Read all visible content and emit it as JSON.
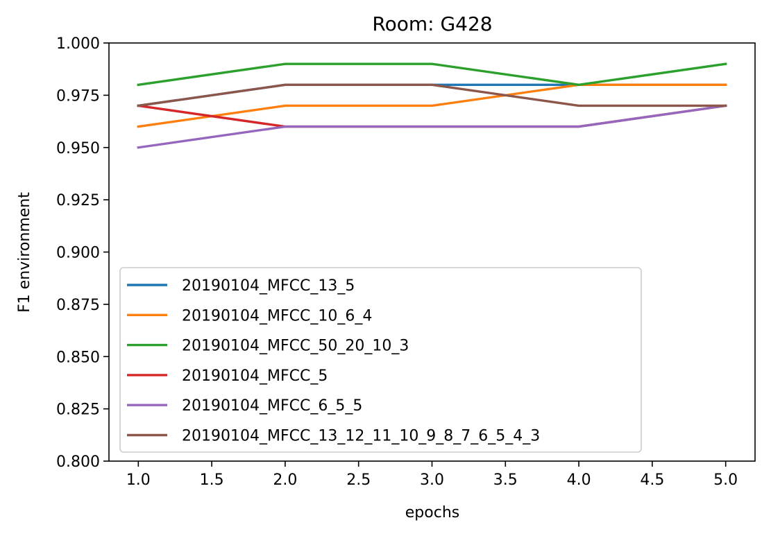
{
  "chart_data": {
    "type": "line",
    "title": "Room: G428",
    "xlabel": "epochs",
    "ylabel": "F1 environment",
    "xlim": [
      0.8,
      5.2
    ],
    "ylim": [
      0.8,
      1.0
    ],
    "xticks": [
      "1.0",
      "1.5",
      "2.0",
      "2.5",
      "3.0",
      "3.5",
      "4.0",
      "4.5",
      "5.0"
    ],
    "yticks": [
      "0.800",
      "0.825",
      "0.850",
      "0.875",
      "0.900",
      "0.925",
      "0.950",
      "0.975",
      "1.000"
    ],
    "grid": false,
    "legend_position": "lower-left",
    "x": [
      1,
      2,
      3,
      4,
      5
    ],
    "series": [
      {
        "name": "20190104_MFCC_13_5",
        "color": "#1f77b4",
        "values": [
          0.97,
          0.98,
          0.98,
          0.98,
          0.98
        ]
      },
      {
        "name": "20190104_MFCC_10_6_4",
        "color": "#ff7f0e",
        "values": [
          0.96,
          0.97,
          0.97,
          0.98,
          0.98
        ]
      },
      {
        "name": "20190104_MFCC_50_20_10_3",
        "color": "#2ca02c",
        "values": [
          0.98,
          0.99,
          0.99,
          0.98,
          0.99
        ]
      },
      {
        "name": "20190104_MFCC_5",
        "color": "#d62728",
        "values": [
          0.97,
          0.96,
          0.96,
          0.96,
          0.97
        ]
      },
      {
        "name": "20190104_MFCC_6_5_5",
        "color": "#9467bd",
        "values": [
          0.95,
          0.96,
          0.96,
          0.96,
          0.97
        ]
      },
      {
        "name": "20190104_MFCC_13_12_11_10_9_8_7_6_5_4_3",
        "color": "#8c564b",
        "values": [
          0.97,
          0.98,
          0.98,
          0.97,
          0.97
        ]
      }
    ]
  }
}
